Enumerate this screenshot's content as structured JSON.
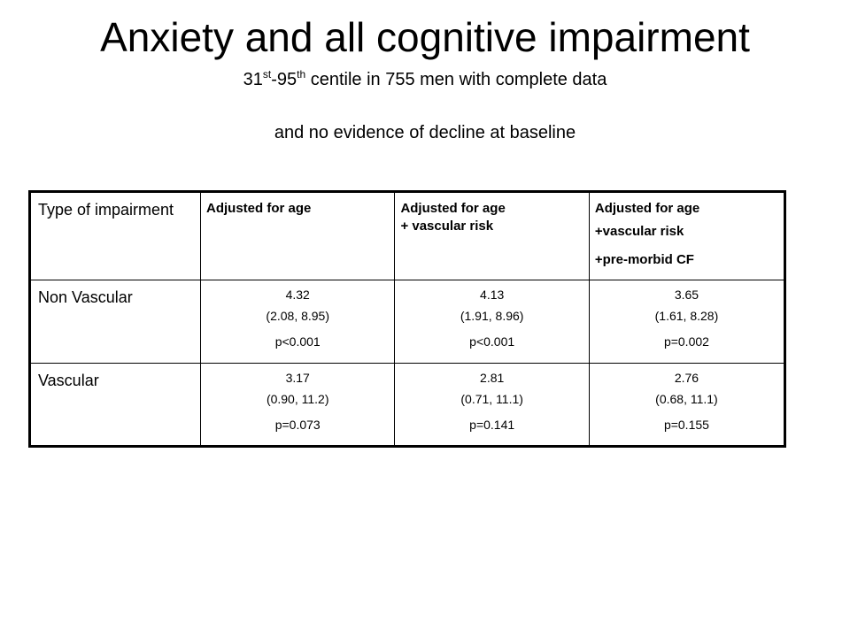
{
  "title": "Anxiety and all cognitive impairment",
  "subtitle": {
    "start1": "31",
    "sup1": "st",
    "mid": "-95",
    "sup2": "th",
    "rest": " centile in 755 men with complete data"
  },
  "subtitle2": "and no evidence of decline at baseline",
  "table": {
    "corner": "Type of impairment",
    "columns": [
      {
        "lines": [
          "Adjusted for age"
        ]
      },
      {
        "lines": [
          "Adjusted for age",
          "+ vascular risk"
        ]
      },
      {
        "lines": [
          "Adjusted for age",
          "+vascular risk",
          "+pre-morbid  CF"
        ]
      }
    ],
    "rows": [
      {
        "label": "Non Vascular",
        "cells": [
          {
            "estimate": "4.32",
            "ci": "(2.08, 8.95)",
            "p": "p<0.001"
          },
          {
            "estimate": "4.13",
            "ci": "(1.91, 8.96)",
            "p": "p<0.001"
          },
          {
            "estimate": "3.65",
            "ci": "(1.61, 8.28)",
            "p": "p=0.002"
          }
        ]
      },
      {
        "label": "Vascular",
        "cells": [
          {
            "estimate": "3.17",
            "ci": "(0.90, 11.2)",
            "p": "p=0.073"
          },
          {
            "estimate": "2.81",
            "ci": "(0.71, 11.1)",
            "p": "p=0.141"
          },
          {
            "estimate": "2.76",
            "ci": "(0.68, 11.1)",
            "p": "p=0.155"
          }
        ]
      }
    ]
  }
}
